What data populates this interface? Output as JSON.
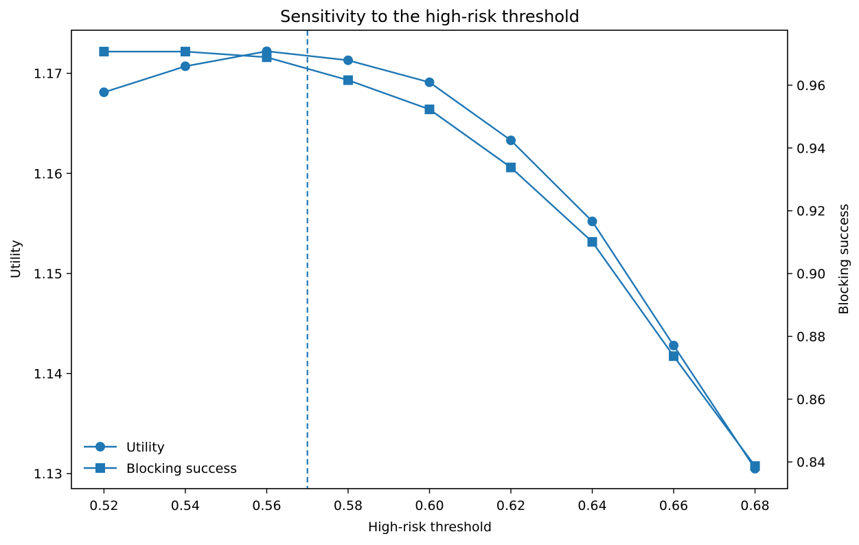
{
  "chart_data": {
    "type": "line",
    "title": "Sensitivity to the high-risk threshold",
    "xlabel": "High-risk threshold",
    "ylabel_left": "Utility",
    "ylabel_right": "Blocking success",
    "x": [
      0.52,
      0.54,
      0.56,
      0.58,
      0.6,
      0.62,
      0.64,
      0.66,
      0.68
    ],
    "x_ticks": [
      "0.52",
      "0.54",
      "0.56",
      "0.58",
      "0.60",
      "0.62",
      "0.64",
      "0.66",
      "0.68"
    ],
    "xlim": [
      0.512,
      0.688
    ],
    "y_left_ticks": [
      "1.13",
      "1.14",
      "1.15",
      "1.16",
      "1.17"
    ],
    "y_left_tick_values": [
      1.13,
      1.14,
      1.15,
      1.16,
      1.17
    ],
    "ylim_left": [
      1.1285,
      1.1743
    ],
    "y_right_ticks": [
      "0.84",
      "0.86",
      "0.88",
      "0.90",
      "0.92",
      "0.94",
      "0.96"
    ],
    "y_right_tick_values": [
      0.84,
      0.86,
      0.88,
      0.9,
      0.92,
      0.94,
      0.96
    ],
    "ylim_right": [
      0.8315,
      0.9775
    ],
    "threshold_line": 0.57,
    "grid": false,
    "legend_position": "lower-left",
    "series": [
      {
        "name": "Utility",
        "axis": "left",
        "marker": "circle",
        "color": "#1f77b4",
        "values": [
          1.1681,
          1.1707,
          1.1722,
          1.1713,
          1.1691,
          1.1633,
          1.1552,
          1.1428,
          1.1305
        ]
      },
      {
        "name": "Blocking success",
        "axis": "right",
        "marker": "square",
        "color": "#1f77b4",
        "values": [
          0.9707,
          0.9707,
          0.9689,
          0.9616,
          0.9523,
          0.9338,
          0.9101,
          0.8737,
          0.8387
        ]
      }
    ]
  }
}
